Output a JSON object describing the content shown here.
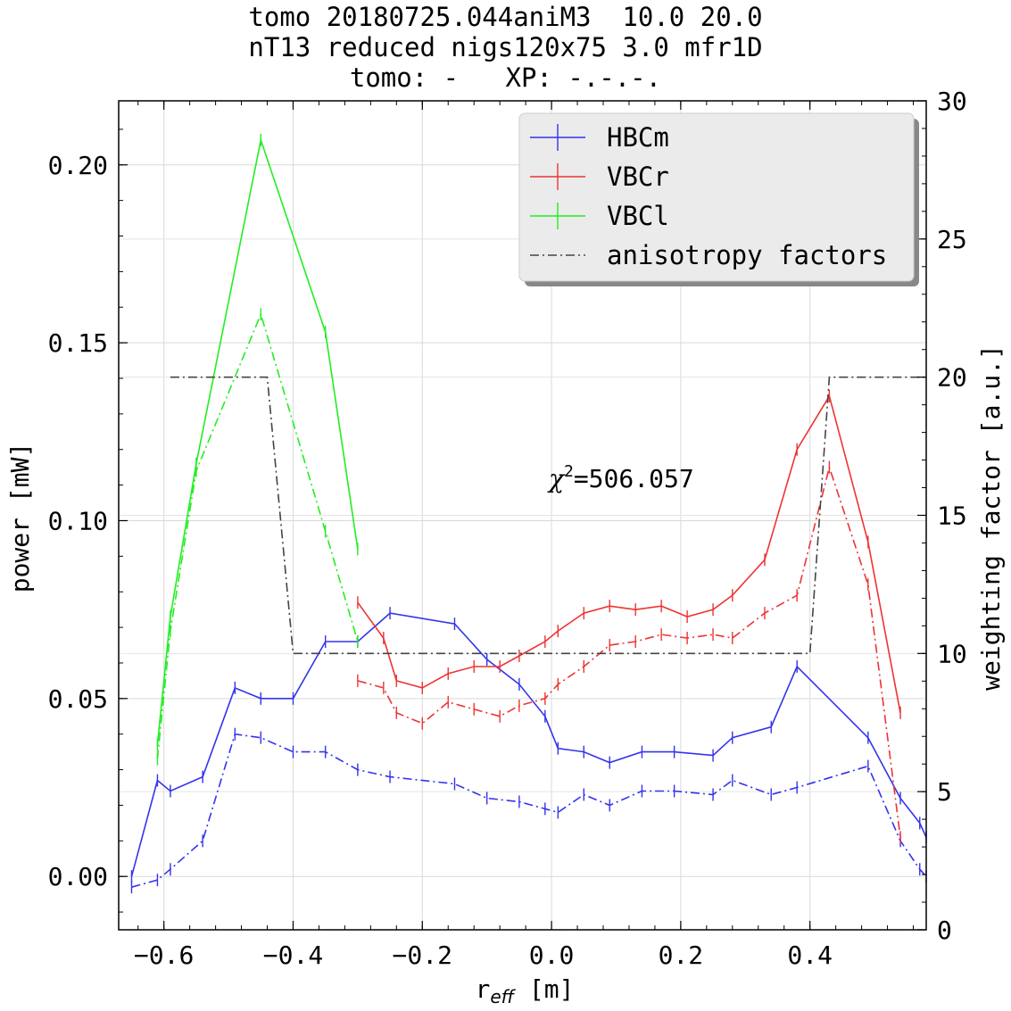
{
  "title_lines": [
    "tomo 20180725.044aniM3  10.0 20.0",
    "nT13 reduced nigs120x75 3.0 mfr1D",
    "tomo: -   XP: -.-.-."
  ],
  "annotation": {
    "symbol": "χ",
    "exponent": "2",
    "value_text": "=506.057"
  },
  "chart_data": {
    "type": "line",
    "xlabel_main": "r",
    "xlabel_sub": "eff",
    "xlabel_unit": " [m]",
    "ylabel": "power [mW]",
    "y2label": "weighting factor [a.u.]",
    "xlim": [
      -0.67,
      0.58
    ],
    "ylim": [
      -0.015,
      0.218
    ],
    "y2lim": [
      0,
      30
    ],
    "xticks": [
      -0.6,
      -0.4,
      -0.2,
      0.0,
      0.2,
      0.4
    ],
    "xtick_labels": [
      "−0.6",
      "−0.4",
      "−0.2",
      "0.0",
      "0.2",
      "0.4"
    ],
    "yticks": [
      0.0,
      0.05,
      0.1,
      0.15,
      0.2
    ],
    "ytick_labels": [
      "0.00",
      "0.05",
      "0.10",
      "0.15",
      "0.20"
    ],
    "y2ticks": [
      0,
      5,
      10,
      15,
      20,
      25,
      30
    ],
    "y2tick_labels": [
      "0",
      "5",
      "10",
      "15",
      "20",
      "25",
      "30"
    ],
    "grid": true,
    "legend_position": "top-right",
    "series": [
      {
        "name": "HBCm",
        "color": "#3333ee",
        "dash": "solid",
        "axis": "left",
        "x": [
          -0.65,
          -0.61,
          -0.59,
          -0.54,
          -0.49,
          -0.45,
          -0.4,
          -0.35,
          -0.3,
          -0.25,
          -0.15,
          -0.1,
          -0.05,
          -0.01,
          0.01,
          0.05,
          0.09,
          0.14,
          0.19,
          0.25,
          0.28,
          0.34,
          0.38,
          0.49,
          0.54,
          0.57,
          0.58
        ],
        "y": [
          0.0,
          0.027,
          0.024,
          0.028,
          0.053,
          0.05,
          0.05,
          0.066,
          0.066,
          0.074,
          0.071,
          0.061,
          0.054,
          0.045,
          0.036,
          0.035,
          0.032,
          0.035,
          0.035,
          0.034,
          0.039,
          0.042,
          0.059,
          0.039,
          0.022,
          0.015,
          0.011
        ]
      },
      {
        "name": "",
        "color": "#3333ee",
        "dash": "dashdot",
        "axis": "left",
        "x": [
          -0.65,
          -0.61,
          -0.59,
          -0.54,
          -0.49,
          -0.45,
          -0.4,
          -0.35,
          -0.3,
          -0.25,
          -0.15,
          -0.1,
          -0.05,
          -0.01,
          0.01,
          0.05,
          0.09,
          0.14,
          0.19,
          0.25,
          0.28,
          0.34,
          0.38,
          0.49,
          0.54,
          0.57,
          0.58
        ],
        "y": [
          -0.003,
          -0.001,
          0.002,
          0.01,
          0.04,
          0.039,
          0.035,
          0.035,
          0.03,
          0.028,
          0.026,
          0.022,
          0.021,
          0.019,
          0.018,
          0.023,
          0.02,
          0.024,
          0.024,
          0.023,
          0.027,
          0.023,
          0.025,
          0.031,
          0.01,
          0.002,
          0.0
        ]
      },
      {
        "name": "VBCr",
        "color": "#ee3333",
        "dash": "solid",
        "axis": "left",
        "x": [
          -0.3,
          -0.26,
          -0.24,
          -0.2,
          -0.16,
          -0.12,
          -0.08,
          -0.05,
          -0.01,
          0.01,
          0.05,
          0.09,
          0.13,
          0.17,
          0.21,
          0.25,
          0.28,
          0.33,
          0.38,
          0.43,
          0.49,
          0.54
        ],
        "y": [
          0.077,
          0.067,
          0.055,
          0.053,
          0.057,
          0.059,
          0.059,
          0.062,
          0.066,
          0.069,
          0.074,
          0.076,
          0.075,
          0.076,
          0.073,
          0.075,
          0.079,
          0.089,
          0.12,
          0.135,
          0.094,
          0.046
        ]
      },
      {
        "name": "",
        "color": "#ee3333",
        "dash": "dashdot",
        "axis": "left",
        "x": [
          -0.3,
          -0.26,
          -0.24,
          -0.2,
          -0.16,
          -0.12,
          -0.08,
          -0.05,
          -0.01,
          0.01,
          0.05,
          0.09,
          0.13,
          0.17,
          0.21,
          0.25,
          0.28,
          0.33,
          0.38,
          0.43,
          0.49,
          0.54
        ],
        "y": [
          0.055,
          0.053,
          0.046,
          0.043,
          0.049,
          0.047,
          0.045,
          0.048,
          0.05,
          0.054,
          0.059,
          0.065,
          0.066,
          0.068,
          0.067,
          0.068,
          0.067,
          0.074,
          0.079,
          0.115,
          0.082,
          0.011
        ]
      },
      {
        "name": "VBCl",
        "color": "#22ee22",
        "dash": "solid",
        "axis": "left",
        "x": [
          -0.61,
          -0.59,
          -0.55,
          -0.45,
          -0.35,
          -0.3
        ],
        "y": [
          0.037,
          0.073,
          0.116,
          0.207,
          0.153,
          0.092
        ]
      },
      {
        "name": "",
        "color": "#22ee22",
        "dash": "dashdot",
        "axis": "left",
        "x": [
          -0.61,
          -0.59,
          -0.55,
          -0.45,
          -0.35,
          -0.3
        ],
        "y": [
          0.033,
          0.069,
          0.114,
          0.158,
          0.097,
          0.066
        ]
      },
      {
        "name": "anisotropy factors",
        "color": "#444444",
        "dash": "dashdot",
        "axis": "right",
        "errorbars": false,
        "x": [
          -0.59,
          -0.44,
          -0.4,
          0.4,
          0.43,
          0.58
        ],
        "y": [
          20,
          20,
          10,
          10,
          20,
          20
        ]
      }
    ]
  }
}
